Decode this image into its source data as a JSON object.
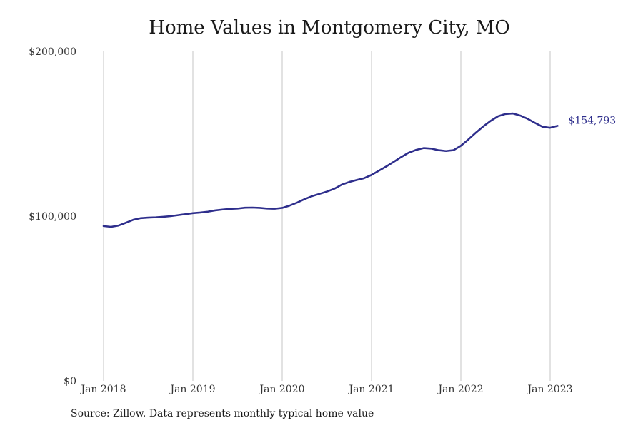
{
  "chart_data": {
    "type": "line",
    "title": "Home Values in Montgomery City, MO",
    "source": "Source: Zillow. Data represents monthly typical home value",
    "xlabel": "",
    "ylabel": "",
    "ylim": [
      0,
      200000
    ],
    "xlim": [
      "2018-01",
      "2023-02"
    ],
    "y_ticks": [
      {
        "value": 0,
        "label": "$0"
      },
      {
        "value": 100000,
        "label": "$100,000"
      },
      {
        "value": 200000,
        "label": "$200,000"
      }
    ],
    "x_ticks": [
      {
        "value": "2018-01",
        "label": "Jan 2018"
      },
      {
        "value": "2019-01",
        "label": "Jan 2019"
      },
      {
        "value": "2020-01",
        "label": "Jan 2020"
      },
      {
        "value": "2021-01",
        "label": "Jan 2021"
      },
      {
        "value": "2022-01",
        "label": "Jan 2022"
      },
      {
        "value": "2023-01",
        "label": "Jan 2023"
      }
    ],
    "grid": "vertical",
    "line_color": "#2e2e8c",
    "end_label": "$154,793",
    "series": [
      {
        "x": [
          "2018-01",
          "2018-02",
          "2018-03",
          "2018-04",
          "2018-05",
          "2018-06",
          "2018-07",
          "2018-08",
          "2018-09",
          "2018-10",
          "2018-11",
          "2018-12",
          "2019-01",
          "2019-02",
          "2019-03",
          "2019-04",
          "2019-05",
          "2019-06",
          "2019-07",
          "2019-08",
          "2019-09",
          "2019-10",
          "2019-11",
          "2019-12",
          "2020-01",
          "2020-02",
          "2020-03",
          "2020-04",
          "2020-05",
          "2020-06",
          "2020-07",
          "2020-08",
          "2020-09",
          "2020-10",
          "2020-11",
          "2020-12",
          "2021-01",
          "2021-02",
          "2021-03",
          "2021-04",
          "2021-05",
          "2021-06",
          "2021-07",
          "2021-08",
          "2021-09",
          "2021-10",
          "2021-11",
          "2021-12",
          "2022-01",
          "2022-02",
          "2022-03",
          "2022-04",
          "2022-05",
          "2022-06",
          "2022-07",
          "2022-08",
          "2022-09",
          "2022-10",
          "2022-11",
          "2022-12",
          "2023-01",
          "2023-02"
        ],
        "values": [
          94000,
          93500,
          94300,
          96000,
          97800,
          98800,
          99100,
          99300,
          99600,
          100000,
          100600,
          101200,
          101800,
          102200,
          102700,
          103500,
          104000,
          104400,
          104600,
          105100,
          105200,
          105000,
          104600,
          104500,
          105000,
          106400,
          108200,
          110300,
          112100,
          113500,
          114900,
          116600,
          119100,
          120700,
          121900,
          123000,
          125000,
          127600,
          130200,
          133000,
          135900,
          138500,
          140200,
          141300,
          141000,
          140000,
          139500,
          140000,
          142700,
          146500,
          150600,
          154400,
          157800,
          160600,
          162000,
          162300,
          161000,
          159000,
          156500,
          154200,
          153600,
          154793
        ]
      }
    ]
  }
}
